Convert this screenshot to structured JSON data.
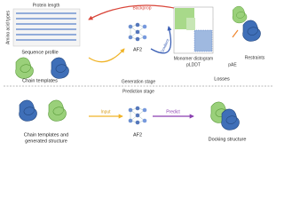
{
  "top": {
    "sequence_profile": {
      "x_axis": "Protein length",
      "y_axis": "Amino acid types",
      "label": "Sequence profile"
    },
    "chain_templates": "Chain templates",
    "backprop": "Backprop",
    "gradient": "Gradient",
    "model": "AF2",
    "losses": {
      "distogram": "Monomer distogram",
      "plddt": "pLDDT",
      "pae": "pAE",
      "restraints": "Restraints",
      "label": "Losses"
    }
  },
  "stages": {
    "generation": "Generation stage",
    "prediction": "Prediction stage"
  },
  "bottom": {
    "input_label": [
      "Chain templates and",
      "generated structure"
    ],
    "input": "Input",
    "model": "AF2",
    "predict": "Predict",
    "output": "Docking structure"
  }
}
